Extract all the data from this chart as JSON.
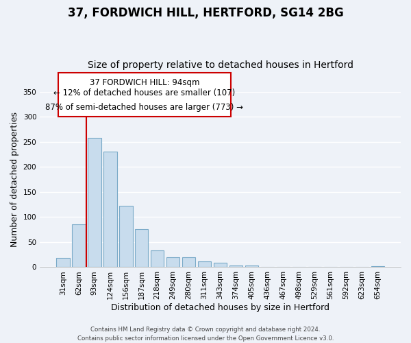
{
  "title": "37, FORDWICH HILL, HERTFORD, SG14 2BG",
  "subtitle": "Size of property relative to detached houses in Hertford",
  "xlabel": "Distribution of detached houses by size in Hertford",
  "ylabel": "Number of detached properties",
  "bar_labels": [
    "31sqm",
    "62sqm",
    "93sqm",
    "124sqm",
    "156sqm",
    "187sqm",
    "218sqm",
    "249sqm",
    "280sqm",
    "311sqm",
    "343sqm",
    "374sqm",
    "405sqm",
    "436sqm",
    "467sqm",
    "498sqm",
    "529sqm",
    "561sqm",
    "592sqm",
    "623sqm",
    "654sqm"
  ],
  "bar_values": [
    19,
    86,
    258,
    230,
    122,
    76,
    33,
    20,
    20,
    11,
    9,
    4,
    4,
    1,
    1,
    1,
    0,
    0,
    0,
    0,
    2
  ],
  "bar_color": "#c8dced",
  "bar_edge_color": "#7aaac8",
  "vline_x": 2,
  "vline_color": "#cc0000",
  "annotation_line1": "37 FORDWICH HILL: 94sqm",
  "annotation_line2": "← 12% of detached houses are smaller (107)",
  "annotation_line3": "87% of semi-detached houses are larger (773) →",
  "ylim": [
    0,
    350
  ],
  "footnote": "Contains HM Land Registry data © Crown copyright and database right 2024.\nContains public sector information licensed under the Open Government Licence v3.0.",
  "background_color": "#eef2f8",
  "grid_color": "#ffffff",
  "title_fontsize": 12,
  "subtitle_fontsize": 10,
  "axis_label_fontsize": 9,
  "tick_fontsize": 7.5
}
